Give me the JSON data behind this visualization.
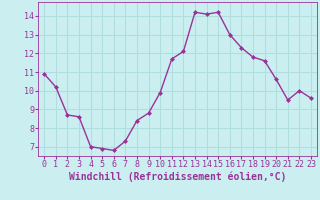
{
  "x": [
    0,
    1,
    2,
    3,
    4,
    5,
    6,
    7,
    8,
    9,
    10,
    11,
    12,
    13,
    14,
    15,
    16,
    17,
    18,
    19,
    20,
    21,
    22,
    23
  ],
  "y": [
    10.9,
    10.2,
    8.7,
    8.6,
    7.0,
    6.9,
    6.8,
    7.3,
    8.4,
    8.8,
    9.9,
    11.7,
    12.1,
    14.2,
    14.1,
    14.2,
    13.0,
    12.3,
    11.8,
    11.6,
    10.6,
    9.5,
    10.0,
    9.6
  ],
  "line_color": "#993399",
  "marker": "D",
  "marker_size": 2.0,
  "linewidth": 1.0,
  "xlabel": "Windchill (Refroidissement éolien,°C)",
  "xlim": [
    -0.5,
    23.5
  ],
  "ylim": [
    6.5,
    14.75
  ],
  "yticks": [
    7,
    8,
    9,
    10,
    11,
    12,
    13,
    14
  ],
  "xticks": [
    0,
    1,
    2,
    3,
    4,
    5,
    6,
    7,
    8,
    9,
    10,
    11,
    12,
    13,
    14,
    15,
    16,
    17,
    18,
    19,
    20,
    21,
    22,
    23
  ],
  "bg_color": "#cbeff0",
  "grid_color": "#b0dede",
  "tick_color": "#993399",
  "spine_color": "#993399",
  "tick_fontsize": 6,
  "xlabel_fontsize": 7
}
